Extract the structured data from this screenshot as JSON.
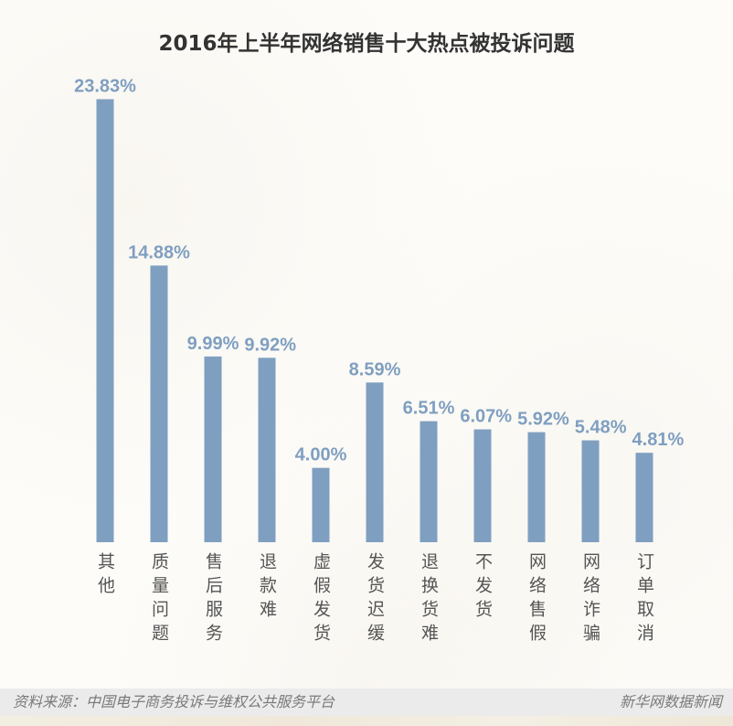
{
  "chart_data": {
    "type": "bar",
    "title": "2016年上半年网络销售十大热点被投诉问题",
    "categories": [
      "其他",
      "质量问题",
      "售后服务",
      "退款难",
      "虚假发货",
      "发货迟缓",
      "退换货难",
      "不发货",
      "网络售假",
      "网络诈骗",
      "订单取消"
    ],
    "values": [
      23.83,
      14.88,
      9.99,
      9.92,
      4.0,
      8.59,
      6.51,
      6.07,
      5.92,
      5.48,
      4.81
    ],
    "value_labels": [
      "23.83%",
      "14.88%",
      "9.99%",
      "9.92%",
      "4.00%",
      "8.59%",
      "6.51%",
      "6.07%",
      "5.92%",
      "5.48%",
      "4.81%"
    ],
    "ylim": [
      0,
      24
    ],
    "grid": false,
    "legend": "none"
  },
  "footer": {
    "source": "资料来源：中国电子商务投诉与维权公共服务平台",
    "credit": "新华网数据新闻"
  },
  "colors": {
    "bar": "#7f9fc1",
    "value_label": "#7f9fc1",
    "title": "#333333",
    "category_label": "#555555",
    "footer_text": "#7a7a7a",
    "footer_band": "#ebebeb"
  }
}
